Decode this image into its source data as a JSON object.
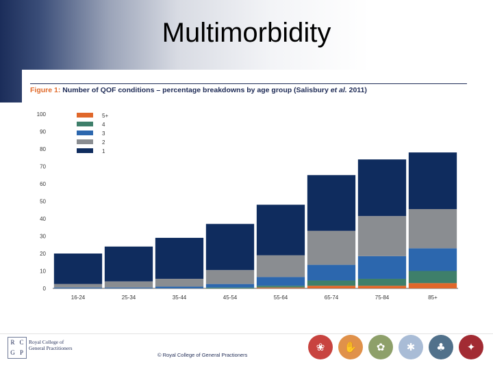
{
  "slide": {
    "title": "Multimorbidity",
    "caption_label": "Figure 1:",
    "caption_text": " Number of QOF conditions – percentage breakdowns by age group (Salisbury ",
    "caption_italic": "et al.",
    "caption_end": " 2011)"
  },
  "footer": {
    "logo_letters": [
      "R",
      "C",
      "G",
      "P"
    ],
    "org_line1": "Royal College of",
    "org_line2": "General Practitioners",
    "copyright": "© Royal College of General Practioners",
    "icons": [
      {
        "name": "rose-icon",
        "glyph": "❀",
        "color": "#c8433f"
      },
      {
        "name": "hands-icon",
        "glyph": "✋",
        "color": "#e0914a"
      },
      {
        "name": "tree-sprout-icon",
        "glyph": "✿",
        "color": "#8ea06a"
      },
      {
        "name": "snowflake-icon",
        "glyph": "✱",
        "color": "#a9bcd6"
      },
      {
        "name": "tree-icon",
        "glyph": "♣",
        "color": "#51718b"
      },
      {
        "name": "bird-icon",
        "glyph": "✦",
        "color": "#a22b33"
      }
    ]
  },
  "chart_data": {
    "type": "bar",
    "stacked": true,
    "title": "Number of QOF conditions – percentage breakdowns by age group (Salisbury et al. 2011)",
    "categories": [
      "16-24",
      "25-34",
      "35-44",
      "45-54",
      "55-64",
      "65-74",
      "75-84",
      "85+"
    ],
    "ylim": [
      0,
      100
    ],
    "yticks": [
      0,
      10,
      20,
      30,
      40,
      50,
      60,
      70,
      80,
      90,
      100
    ],
    "legend_position": "top-left",
    "series": [
      {
        "name": "1",
        "color": "#0f2c5e",
        "values": [
          17.5,
          20,
          23.5,
          26.5,
          29,
          32,
          32.5,
          32.5
        ]
      },
      {
        "name": "2",
        "color": "#8a8d91",
        "values": [
          2,
          3.5,
          4.5,
          8,
          12.5,
          19.5,
          23,
          22.5
        ]
      },
      {
        "name": "3",
        "color": "#2c67ae",
        "values": [
          0.5,
          0.5,
          1,
          2,
          5,
          9,
          13,
          13
        ]
      },
      {
        "name": "4",
        "color": "#3e7f6a",
        "values": [
          0,
          0,
          0,
          0.5,
          1,
          3,
          4,
          7
        ]
      },
      {
        "name": "5+",
        "color": "#e0672a",
        "values": [
          0,
          0,
          0,
          0,
          0.5,
          1.5,
          1.5,
          3
        ]
      }
    ]
  }
}
